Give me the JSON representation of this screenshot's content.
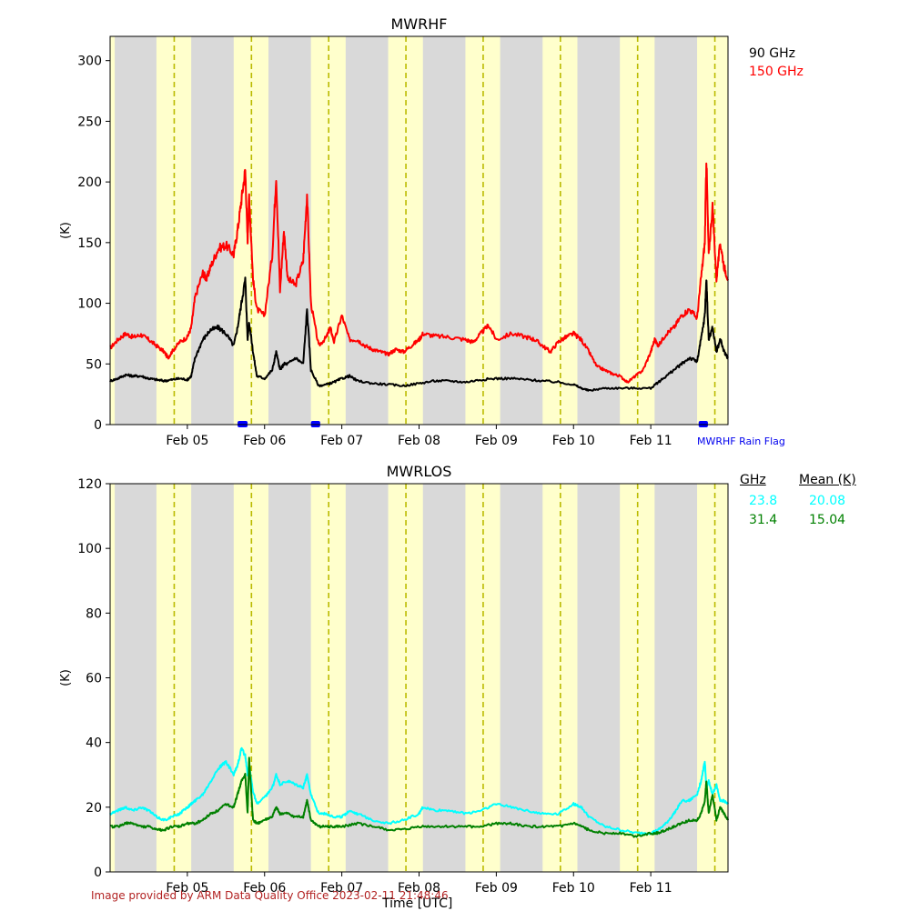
{
  "footer": "Image provided by ARM Data Quality Office 2023-02-11 21:48:46",
  "x_title": "Time [UTC]",
  "rain_flag_label": "MWRHF Rain Flag",
  "colors": {
    "day": "#d9d9d9",
    "night": "#ffffcc",
    "midline": "#bbbb00",
    "ch90": "#000000",
    "ch150": "#ff0000",
    "ch23": "#00ffff",
    "ch31": "#008000",
    "rain": "#0000ff"
  },
  "legend_top": [
    {
      "label": "90 GHz",
      "color": "#000000"
    },
    {
      "label": "150 GHz",
      "color": "#ff0000"
    }
  ],
  "legend_bottom": {
    "headers": [
      "GHz",
      "Mean (K)"
    ],
    "rows": [
      {
        "freq": "23.8",
        "mean": "20.08",
        "color": "#00ffff"
      },
      {
        "freq": "31.4",
        "mean": "15.04",
        "color": "#008000"
      }
    ]
  },
  "chart_data": [
    {
      "type": "line",
      "title": "MWRHF",
      "xlabel": "",
      "ylabel": "(K)",
      "xlim_days": [
        4.0,
        12.0
      ],
      "ylim": [
        0,
        320
      ],
      "yticks": [
        0,
        50,
        100,
        150,
        200,
        250,
        300
      ],
      "xticks": [
        5,
        6,
        7,
        8,
        9,
        10,
        11
      ],
      "xtick_labels": [
        "Feb 05",
        "Feb 06",
        "Feb 07",
        "Feb 08",
        "Feb 09",
        "Feb 10",
        "Feb 11"
      ],
      "night_bands": [
        [
          4.0,
          4.06
        ],
        [
          4.6,
          5.05
        ],
        [
          5.6,
          6.05
        ],
        [
          6.6,
          7.05
        ],
        [
          7.6,
          8.05
        ],
        [
          8.6,
          9.05
        ],
        [
          9.6,
          10.05
        ],
        [
          10.6,
          11.05
        ],
        [
          11.6,
          12.0
        ]
      ],
      "midlines": [
        4.83,
        5.83,
        6.83,
        7.83,
        8.83,
        9.83,
        10.83,
        11.83
      ],
      "rain_flag": [
        [
          5.65,
          5.78
        ],
        [
          6.6,
          6.72
        ],
        [
          11.62,
          11.74
        ]
      ],
      "series": [
        {
          "name": "150 GHz",
          "color": "#ff0000",
          "x": [
            4.0,
            4.1,
            4.2,
            4.3,
            4.4,
            4.5,
            4.6,
            4.7,
            4.75,
            4.8,
            4.9,
            5.0,
            5.05,
            5.1,
            5.2,
            5.25,
            5.3,
            5.4,
            5.5,
            5.6,
            5.65,
            5.7,
            5.75,
            5.78,
            5.8,
            5.85,
            5.9,
            6.0,
            6.1,
            6.15,
            6.2,
            6.25,
            6.3,
            6.4,
            6.5,
            6.55,
            6.6,
            6.7,
            6.8,
            6.85,
            6.9,
            7.0,
            7.1,
            7.2,
            7.3,
            7.4,
            7.5,
            7.6,
            7.7,
            7.8,
            7.9,
            8.0,
            8.05,
            8.2,
            8.4,
            8.6,
            8.7,
            8.8,
            8.9,
            9.0,
            9.2,
            9.4,
            9.5,
            9.6,
            9.7,
            9.8,
            9.9,
            10.0,
            10.1,
            10.2,
            10.3,
            10.4,
            10.5,
            10.6,
            10.7,
            10.8,
            10.9,
            11.0,
            11.05,
            11.1,
            11.2,
            11.3,
            11.4,
            11.5,
            11.6,
            11.65,
            11.7,
            11.72,
            11.75,
            11.8,
            11.85,
            11.9,
            11.95,
            12.0
          ],
          "y": [
            63,
            70,
            75,
            72,
            74,
            70,
            65,
            60,
            55,
            60,
            68,
            72,
            80,
            105,
            125,
            120,
            130,
            145,
            148,
            140,
            160,
            185,
            210,
            150,
            190,
            120,
            95,
            90,
            140,
            205,
            110,
            160,
            120,
            115,
            135,
            190,
            100,
            65,
            72,
            80,
            68,
            90,
            70,
            70,
            65,
            62,
            60,
            58,
            62,
            60,
            65,
            70,
            75,
            73,
            72,
            70,
            68,
            75,
            82,
            70,
            75,
            72,
            70,
            65,
            60,
            68,
            72,
            75,
            70,
            60,
            48,
            45,
            42,
            40,
            35,
            40,
            45,
            60,
            70,
            65,
            75,
            80,
            90,
            95,
            88,
            120,
            150,
            220,
            140,
            180,
            120,
            150,
            130,
            120
          ]
        },
        {
          "name": "90 GHz",
          "color": "#000000",
          "x": [
            4.0,
            4.1,
            4.2,
            4.3,
            4.4,
            4.5,
            4.6,
            4.7,
            4.8,
            4.9,
            5.0,
            5.05,
            5.1,
            5.2,
            5.3,
            5.4,
            5.5,
            5.6,
            5.65,
            5.7,
            5.75,
            5.78,
            5.8,
            5.85,
            5.9,
            6.0,
            6.1,
            6.15,
            6.2,
            6.25,
            6.3,
            6.4,
            6.5,
            6.55,
            6.6,
            6.7,
            6.8,
            6.9,
            7.0,
            7.1,
            7.2,
            7.4,
            7.6,
            7.8,
            8.0,
            8.2,
            8.4,
            8.6,
            8.8,
            9.0,
            9.2,
            9.4,
            9.6,
            9.8,
            10.0,
            10.1,
            10.2,
            10.4,
            10.6,
            10.8,
            11.0,
            11.1,
            11.2,
            11.3,
            11.4,
            11.5,
            11.6,
            11.65,
            11.7,
            11.72,
            11.75,
            11.8,
            11.85,
            11.9,
            11.95,
            12.0
          ],
          "y": [
            36,
            38,
            41,
            40,
            40,
            38,
            37,
            36,
            37,
            38,
            37,
            40,
            55,
            70,
            78,
            80,
            75,
            65,
            80,
            100,
            120,
            70,
            85,
            60,
            40,
            38,
            45,
            60,
            45,
            50,
            50,
            55,
            50,
            95,
            45,
            32,
            33,
            35,
            38,
            40,
            36,
            34,
            33,
            32,
            34,
            36,
            36,
            35,
            37,
            38,
            38,
            37,
            36,
            35,
            33,
            30,
            28,
            30,
            30,
            30,
            30,
            35,
            40,
            45,
            50,
            55,
            52,
            70,
            90,
            120,
            70,
            80,
            60,
            70,
            60,
            55
          ]
        }
      ]
    },
    {
      "type": "line",
      "title": "MWRLOS",
      "xlabel": "Time [UTC]",
      "ylabel": "(K)",
      "xlim_days": [
        4.0,
        12.0
      ],
      "ylim": [
        0,
        120
      ],
      "yticks": [
        0,
        20,
        40,
        60,
        80,
        100,
        120
      ],
      "xticks": [
        5,
        6,
        7,
        8,
        9,
        10,
        11
      ],
      "xtick_labels": [
        "Feb 05",
        "Feb 06",
        "Feb 07",
        "Feb 08",
        "Feb 09",
        "Feb 10",
        "Feb 11"
      ],
      "night_bands": [
        [
          4.0,
          4.06
        ],
        [
          4.6,
          5.05
        ],
        [
          5.6,
          6.05
        ],
        [
          6.6,
          7.05
        ],
        [
          7.6,
          8.05
        ],
        [
          8.6,
          9.05
        ],
        [
          9.6,
          10.05
        ],
        [
          10.6,
          11.05
        ],
        [
          11.6,
          12.0
        ]
      ],
      "midlines": [
        4.83,
        5.83,
        6.83,
        7.83,
        8.83,
        9.83,
        10.83,
        11.83
      ],
      "series": [
        {
          "name": "23.8",
          "color": "#00ffff",
          "x": [
            4.0,
            4.1,
            4.2,
            4.3,
            4.4,
            4.5,
            4.6,
            4.7,
            4.8,
            4.9,
            5.0,
            5.05,
            5.1,
            5.2,
            5.3,
            5.4,
            5.5,
            5.6,
            5.65,
            5.7,
            5.75,
            5.78,
            5.8,
            5.85,
            5.9,
            6.0,
            6.1,
            6.15,
            6.2,
            6.3,
            6.4,
            6.5,
            6.55,
            6.6,
            6.7,
            6.8,
            6.9,
            7.0,
            7.1,
            7.2,
            7.4,
            7.6,
            7.8,
            8.0,
            8.05,
            8.2,
            8.4,
            8.6,
            8.8,
            9.0,
            9.2,
            9.4,
            9.6,
            9.8,
            10.0,
            10.1,
            10.2,
            10.4,
            10.6,
            10.8,
            11.0,
            11.1,
            11.2,
            11.3,
            11.4,
            11.5,
            11.6,
            11.65,
            11.7,
            11.72,
            11.75,
            11.8,
            11.85,
            11.9,
            11.95,
            12.0
          ],
          "y": [
            18,
            19,
            20,
            19,
            20,
            19,
            17,
            16,
            17,
            18,
            20,
            21,
            22,
            24,
            28,
            32,
            34,
            30,
            33,
            38,
            36,
            30,
            33,
            25,
            21,
            23,
            26,
            30,
            27,
            28,
            27,
            26,
            30,
            24,
            18,
            18,
            17,
            17,
            19,
            18,
            16,
            15,
            16,
            18,
            20,
            19,
            19,
            18,
            19,
            21,
            20,
            19,
            18,
            18,
            21,
            20,
            17,
            14,
            13,
            12,
            12,
            13,
            15,
            18,
            22,
            22,
            24,
            28,
            34,
            26,
            28,
            24,
            27,
            22,
            22,
            21
          ]
        },
        {
          "name": "31.4",
          "color": "#008000",
          "x": [
            4.0,
            4.1,
            4.2,
            4.3,
            4.4,
            4.5,
            4.6,
            4.7,
            4.8,
            4.9,
            5.0,
            5.1,
            5.2,
            5.3,
            5.4,
            5.5,
            5.6,
            5.65,
            5.7,
            5.75,
            5.78,
            5.8,
            5.85,
            5.9,
            6.0,
            6.1,
            6.15,
            6.2,
            6.3,
            6.4,
            6.5,
            6.55,
            6.6,
            6.7,
            6.8,
            6.9,
            7.0,
            7.2,
            7.4,
            7.6,
            7.8,
            8.0,
            8.2,
            8.4,
            8.6,
            8.8,
            9.0,
            9.2,
            9.4,
            9.6,
            9.8,
            10.0,
            10.1,
            10.2,
            10.4,
            10.6,
            10.8,
            11.0,
            11.1,
            11.2,
            11.3,
            11.4,
            11.5,
            11.6,
            11.65,
            11.7,
            11.72,
            11.75,
            11.8,
            11.85,
            11.9,
            11.95,
            12.0
          ],
          "y": [
            14,
            14,
            15,
            15,
            14,
            14,
            13,
            13,
            14,
            14,
            15,
            15,
            16,
            18,
            19,
            21,
            20,
            24,
            28,
            30,
            18,
            35,
            16,
            15,
            16,
            17,
            20,
            18,
            18,
            17,
            17,
            22,
            16,
            14,
            14,
            14,
            14,
            15,
            14,
            13,
            13,
            14,
            14,
            14,
            14,
            14,
            15,
            15,
            14,
            14,
            14,
            15,
            14,
            13,
            12,
            12,
            11,
            12,
            12,
            13,
            14,
            15,
            16,
            16,
            18,
            22,
            28,
            18,
            24,
            16,
            20,
            18,
            16
          ]
        }
      ]
    }
  ]
}
